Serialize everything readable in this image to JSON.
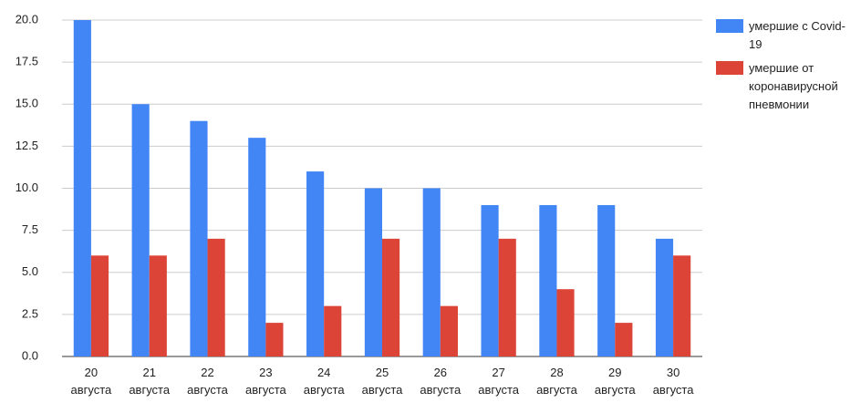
{
  "chart_data": {
    "type": "bar",
    "categories": [
      "20 августа",
      "21 августа",
      "22 августа",
      "23 августа",
      "24 августа",
      "25 августа",
      "26 августа",
      "27 августа",
      "28 августа",
      "29 августа",
      "30 августа"
    ],
    "series": [
      {
        "name": "умершие с Covid-19",
        "color": "#4285f4",
        "values": [
          20,
          15,
          14,
          13,
          11,
          10,
          10,
          9,
          9,
          9,
          7
        ]
      },
      {
        "name": "умершие от коронавирусной пневмонии",
        "color": "#db4437",
        "values": [
          6,
          6,
          7,
          2,
          3,
          7,
          3,
          7,
          4,
          2,
          6
        ]
      }
    ],
    "ylim": [
      0,
      20
    ],
    "yticks": [
      {
        "value": 0,
        "label": "0.0"
      },
      2.5,
      {
        "value": 5,
        "label": "5.0"
      },
      7.5,
      {
        "value": 10,
        "label": "10.0"
      },
      12.5,
      {
        "value": 15,
        "label": "15.0"
      },
      17.5,
      {
        "value": 20,
        "label": "20.0"
      }
    ],
    "grid": true,
    "legend": "right"
  }
}
